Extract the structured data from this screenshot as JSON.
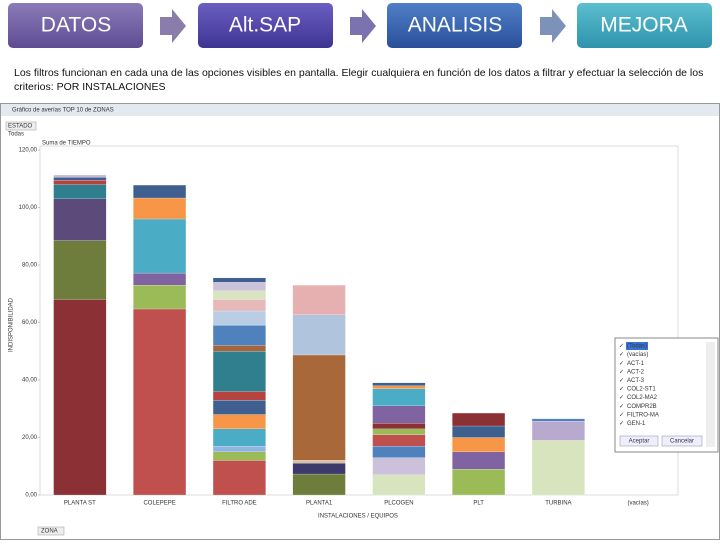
{
  "steps": [
    "DATOS",
    "Alt.SAP",
    "ANALISIS",
    "MEJORA"
  ],
  "instructions": "Los filtros funcionan en cada una de las opciones visibles en pantalla. Elegir cualquiera en función de los datos a filtrar y efectuar la selección de los criterios: POR INSTALACIONES",
  "window_title": "Gráfico de averías TOP 10 de ZONAS",
  "top_filter": {
    "label": "ESTADO",
    "value": "Todas"
  },
  "bottom_filter": "ZONA",
  "chart_data": {
    "type": "stacked-bar",
    "legend_title": "Suma de TIEMPO",
    "y_label": "INDISPONIBILIDAD",
    "x_label": "INSTALACIONES / EQUIPOS",
    "ylim": [
      0,
      120
    ],
    "yticks": [
      {
        "value": 0,
        "label": "0,00"
      },
      {
        "value": 20,
        "label": "20,00"
      },
      {
        "value": 40,
        "label": "40,00"
      },
      {
        "value": 60,
        "label": "60,00"
      },
      {
        "value": 80,
        "label": "80,00"
      },
      {
        "value": 100,
        "label": "100,00"
      },
      {
        "value": 120,
        "label": "120,00"
      }
    ],
    "categories": [
      "PLANTA ST",
      "COLEPEPE",
      "FILTRO ADE",
      "PLANTA1",
      "PLCOGEN",
      "PLT",
      "TURBINA",
      "(vacías)"
    ],
    "bars": [
      {
        "segments": [
          {
            "value": 68,
            "color": "#8b3035"
          },
          {
            "value": 20.5,
            "color": "#6e7d3c"
          },
          {
            "value": 14.5,
            "color": "#5b4a7a"
          },
          {
            "value": 5,
            "color": "#2f7f8e"
          },
          {
            "value": 1.5,
            "color": "#b5433f"
          },
          {
            "value": 1,
            "color": "#3f5f8f"
          },
          {
            "value": 0.8,
            "color": "#c8b8d8"
          }
        ]
      },
      {
        "segments": [
          {
            "value": 64.7,
            "color": "#c0504d"
          },
          {
            "value": 8.3,
            "color": "#9bbb59"
          },
          {
            "value": 4.2,
            "color": "#8064a2"
          },
          {
            "value": 18.8,
            "color": "#4bacc6"
          },
          {
            "value": 7.3,
            "color": "#f79646"
          },
          {
            "value": 4.5,
            "color": "#3f5f8f"
          }
        ]
      },
      {
        "segments": [
          {
            "value": 12,
            "color": "#c0504d"
          },
          {
            "value": 3,
            "color": "#9bbb59"
          },
          {
            "value": 2,
            "color": "#8fb4e0"
          },
          {
            "value": 6,
            "color": "#4bacc6"
          },
          {
            "value": 5,
            "color": "#f79646"
          },
          {
            "value": 5,
            "color": "#3f5f8f"
          },
          {
            "value": 3,
            "color": "#b5433f"
          },
          {
            "value": 14,
            "color": "#2f7f8e"
          },
          {
            "value": 2,
            "color": "#a5643a"
          },
          {
            "value": 7,
            "color": "#4f81bd"
          },
          {
            "value": 5,
            "color": "#b9cde5"
          },
          {
            "value": 4,
            "color": "#e6b9b8"
          },
          {
            "value": 3,
            "color": "#d7e4bd"
          },
          {
            "value": 3,
            "color": "#ccc1da"
          },
          {
            "value": 1.5,
            "color": "#3f5f8f"
          }
        ]
      },
      {
        "segments": [
          {
            "value": 7.3,
            "color": "#6e7d3c"
          },
          {
            "value": 3.8,
            "color": "#3b3a6b"
          },
          {
            "value": 1,
            "color": "#d8c0a0"
          },
          {
            "value": 36.6,
            "color": "#a9683a"
          },
          {
            "value": 14,
            "color": "#b0c4de"
          },
          {
            "value": 10.3,
            "color": "#e6b0b0"
          }
        ]
      },
      {
        "segments": [
          {
            "value": 7,
            "color": "#d7e4bd"
          },
          {
            "value": 6,
            "color": "#ccc1da"
          },
          {
            "value": 4,
            "color": "#4f81bd"
          },
          {
            "value": 4,
            "color": "#c0504d"
          },
          {
            "value": 2,
            "color": "#9bbb59"
          },
          {
            "value": 2,
            "color": "#8b3035"
          },
          {
            "value": 6,
            "color": "#8064a2"
          },
          {
            "value": 6,
            "color": "#4bacc6"
          },
          {
            "value": 1,
            "color": "#f79646"
          },
          {
            "value": 1,
            "color": "#3f5f8f"
          }
        ]
      },
      {
        "segments": [
          {
            "value": 9,
            "color": "#9bbb59"
          },
          {
            "value": 6,
            "color": "#8064a2"
          },
          {
            "value": 5,
            "color": "#f79646"
          },
          {
            "value": 4,
            "color": "#3f5f8f"
          },
          {
            "value": 4.5,
            "color": "#8b3035"
          }
        ]
      },
      {
        "segments": [
          {
            "value": 19,
            "color": "#d7e4bd"
          },
          {
            "value": 6.7,
            "color": "#b8a9cf"
          },
          {
            "value": 0.8,
            "color": "#4f81bd"
          }
        ]
      },
      {
        "segments": []
      }
    ]
  },
  "filter_list": {
    "items": [
      "(Todas)",
      "(vacías)",
      "ACT-1",
      "ACT-2",
      "ACT-3",
      "COL2-ST1",
      "COL2-MA2",
      "COMPR2B",
      "FILTRO-MA",
      "GEN-1"
    ],
    "ok": "Aceptar",
    "cancel": "Cancelar"
  }
}
